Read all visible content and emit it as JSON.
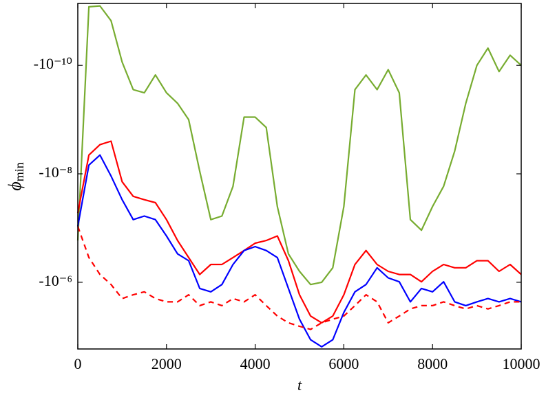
{
  "chart_data": {
    "type": "line",
    "xlabel": "t",
    "ylabel": [
      "ϕ",
      "min"
    ],
    "yscale": "log",
    "x": [
      0,
      250,
      500,
      750,
      1000,
      1250,
      1500,
      1750,
      2000,
      2250,
      2500,
      2750,
      3000,
      3250,
      3500,
      3750,
      4000,
      4250,
      4500,
      4750,
      5000,
      5250,
      5500,
      5750,
      6000,
      6250,
      6500,
      6750,
      7000,
      7250,
      7500,
      7750,
      8000,
      8250,
      8500,
      8750,
      9000,
      9250,
      9500,
      9750,
      10000
    ],
    "xlim": [
      0,
      10000
    ],
    "xticks": [
      0,
      2000,
      4000,
      6000,
      8000,
      10000
    ],
    "ylim": [
      -1.7e-05,
      -7.2e-12
    ],
    "yticks": [
      {
        "value": -1e-10,
        "label": "-10⁻¹⁰"
      },
      {
        "value": -1e-08,
        "label": "-10⁻⁸"
      },
      {
        "value": -1e-06,
        "label": "-10⁻⁶"
      }
    ],
    "series": [
      {
        "color": "#77ac30",
        "dash": false,
        "values": [
          -1.7e-07,
          -8.3e-12,
          -8e-12,
          -1.5e-11,
          -8.7e-11,
          -2.8e-10,
          -3.2e-10,
          -1.5e-10,
          -3.2e-10,
          -5e-10,
          -1e-09,
          -9e-09,
          -7e-08,
          -6e-08,
          -1.7e-08,
          -9e-10,
          -9e-10,
          -1.4e-09,
          -4e-08,
          -3e-07,
          -6.3e-07,
          -1.1e-06,
          -1e-06,
          -5.4e-07,
          -4e-08,
          -2.8e-10,
          -1.5e-10,
          -2.8e-10,
          -1.2e-10,
          -3.2e-10,
          -7e-08,
          -1.1e-07,
          -4e-08,
          -1.7e-08,
          -3.8e-09,
          -5e-10,
          -1e-10,
          -4.8e-11,
          -1.3e-10,
          -6.5e-11,
          -1e-10
        ]
      },
      {
        "color": "#ff0000",
        "dash": false,
        "values": [
          -5.3e-08,
          -4.5e-09,
          -2.9e-09,
          -2.5e-09,
          -1.4e-08,
          -2.6e-08,
          -3e-08,
          -3.4e-08,
          -7e-08,
          -1.7e-07,
          -3.5e-07,
          -7.2e-07,
          -4.7e-07,
          -4.7e-07,
          -3.5e-07,
          -2.6e-07,
          -1.9e-07,
          -1.7e-07,
          -1.4e-07,
          -4e-07,
          -1.7e-06,
          -4.2e-06,
          -5.6e-06,
          -4.2e-06,
          -1.7e-06,
          -4.7e-07,
          -2.6e-07,
          -4.7e-07,
          -6.3e-07,
          -7.2e-07,
          -7.2e-07,
          -9.8e-07,
          -6.3e-07,
          -4.7e-07,
          -5.4e-07,
          -5.4e-07,
          -4e-07,
          -4e-07,
          -6.3e-07,
          -4.7e-07,
          -7.2e-07
        ]
      },
      {
        "color": "#0000ff",
        "dash": false,
        "values": [
          -9.3e-08,
          -6.9e-09,
          -4.5e-09,
          -1.1e-08,
          -3e-08,
          -7e-08,
          -6e-08,
          -7e-08,
          -1.4e-07,
          -3e-07,
          -4e-07,
          -1.3e-06,
          -1.5e-06,
          -1.1e-06,
          -4.7e-07,
          -2.6e-07,
          -2.2e-07,
          -2.6e-07,
          -3.5e-07,
          -1.3e-06,
          -4.8e-06,
          -1.15e-05,
          -1.55e-05,
          -1.15e-05,
          -3.6e-06,
          -1.5e-06,
          -1.1e-06,
          -5.4e-07,
          -8.3e-07,
          -9.8e-07,
          -2.3e-06,
          -1.3e-06,
          -1.5e-06,
          -9.8e-07,
          -2.3e-06,
          -2.7e-06,
          -2.3e-06,
          -2e-06,
          -2.3e-06,
          -2e-06,
          -2.3e-06
        ]
      },
      {
        "color": "#ff0000",
        "dash": true,
        "values": [
          -9.3e-08,
          -3.5e-07,
          -7.2e-07,
          -1.1e-06,
          -2e-06,
          -1.7e-06,
          -1.5e-06,
          -2e-06,
          -2.3e-06,
          -2.3e-06,
          -1.7e-06,
          -2.7e-06,
          -2.3e-06,
          -2.7e-06,
          -2e-06,
          -2.3e-06,
          -1.7e-06,
          -2.7e-06,
          -4.2e-06,
          -5.6e-06,
          -6.5e-06,
          -7.4e-06,
          -5.6e-06,
          -4.8e-06,
          -4.2e-06,
          -2.7e-06,
          -1.7e-06,
          -2.3e-06,
          -5.6e-06,
          -4.2e-06,
          -3.1e-06,
          -2.7e-06,
          -2.7e-06,
          -2.3e-06,
          -2.7e-06,
          -3.1e-06,
          -2.7e-06,
          -3.1e-06,
          -2.7e-06,
          -2.3e-06,
          -2.3e-06
        ]
      }
    ]
  }
}
